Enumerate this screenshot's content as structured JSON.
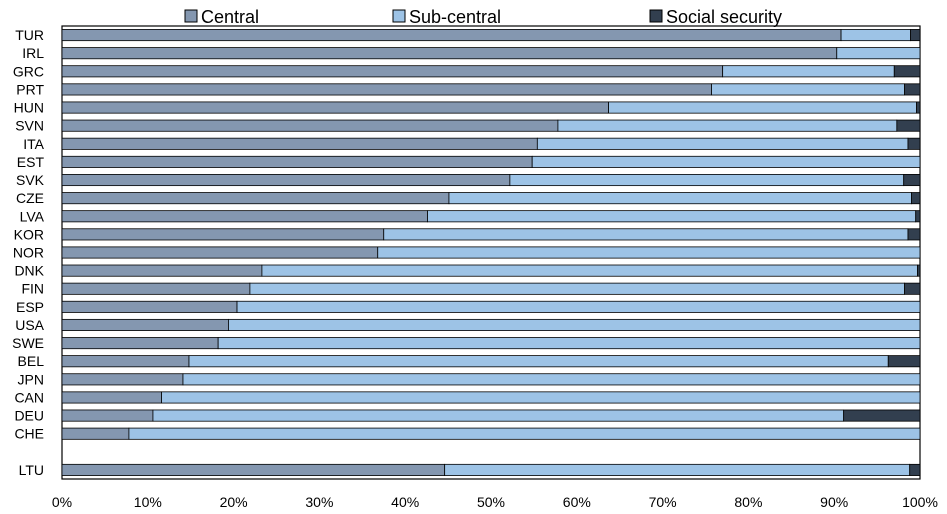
{
  "chart_data": {
    "type": "bar",
    "orientation": "horizontal",
    "stacked": true,
    "categories": [
      "TUR",
      "IRL",
      "GRC",
      "PRT",
      "HUN",
      "SVN",
      "ITA",
      "EST",
      "SVK",
      "CZE",
      "LVA",
      "KOR",
      "NOR",
      "DNK",
      "FIN",
      "ESP",
      "USA",
      "SWE",
      "BEL",
      "JPN",
      "CAN",
      "DEU",
      "CHE",
      "",
      "LTU"
    ],
    "series": [
      {
        "name": "Central",
        "color": "#8497B0",
        "values": [
          90.8,
          90.3,
          77.0,
          75.7,
          63.7,
          57.8,
          55.4,
          54.8,
          52.2,
          45.1,
          42.6,
          37.5,
          36.8,
          23.3,
          21.9,
          20.4,
          19.4,
          18.2,
          14.8,
          14.1,
          11.6,
          10.6,
          7.8,
          null,
          44.6
        ]
      },
      {
        "name": "Sub-central",
        "color": "#9DC3E6",
        "values": [
          8.1,
          9.7,
          20.0,
          22.5,
          35.9,
          39.5,
          43.2,
          45.2,
          45.9,
          53.9,
          56.9,
          61.1,
          63.2,
          76.4,
          76.3,
          79.6,
          80.6,
          81.8,
          81.5,
          85.9,
          88.4,
          80.5,
          92.2,
          null,
          54.2
        ]
      },
      {
        "name": "Social security",
        "color": "#323F4F",
        "values": [
          1.1,
          0.0,
          3.0,
          1.8,
          0.4,
          2.7,
          1.4,
          0.0,
          1.9,
          1.0,
          0.5,
          1.4,
          0.0,
          0.3,
          1.8,
          0.0,
          0.0,
          0.0,
          3.7,
          0.0,
          0.0,
          8.9,
          0.0,
          null,
          1.2
        ]
      }
    ],
    "x_ticks": [
      "0%",
      "10%",
      "20%",
      "30%",
      "40%",
      "50%",
      "60%",
      "70%",
      "80%",
      "90%",
      "100%"
    ],
    "xlim": [
      0,
      100
    ],
    "xlabel": "",
    "ylabel": "",
    "title": "",
    "legend": {
      "position": "top"
    },
    "grid": false
  }
}
